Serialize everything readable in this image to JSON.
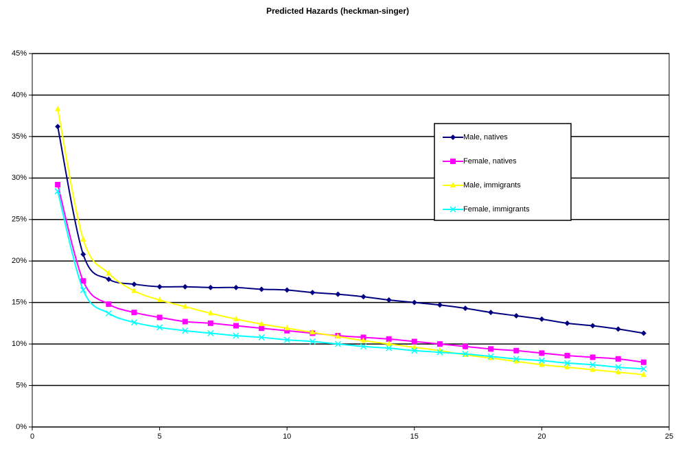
{
  "chart_data": {
    "type": "line",
    "title": "Predicted Hazards (heckman-singer)",
    "x": [
      1,
      2,
      3,
      4,
      5,
      6,
      7,
      8,
      9,
      10,
      11,
      12,
      13,
      14,
      15,
      16,
      17,
      18,
      19,
      20,
      21,
      22,
      23,
      24
    ],
    "xlim": [
      0,
      25
    ],
    "xticks": [
      0,
      5,
      10,
      15,
      20,
      25
    ],
    "ylim": [
      0,
      45
    ],
    "yticks": [
      {
        "value": 0,
        "label": "0%"
      },
      {
        "value": 5,
        "label": "5%"
      },
      {
        "value": 10,
        "label": "10%"
      },
      {
        "value": 15,
        "label": "15%"
      },
      {
        "value": 20,
        "label": "20%"
      },
      {
        "value": 25,
        "label": "25%"
      },
      {
        "value": 30,
        "label": "30%"
      },
      {
        "value": 35,
        "label": "35%"
      },
      {
        "value": 40,
        "label": "40%"
      },
      {
        "value": 45,
        "label": "45%"
      }
    ],
    "grid": true,
    "legend": "right",
    "series": [
      {
        "name": "Male, natives",
        "color": "#000080",
        "marker": "diamond",
        "values": [
          36.2,
          20.8,
          17.8,
          17.2,
          16.9,
          16.9,
          16.8,
          16.8,
          16.6,
          16.5,
          16.2,
          16.0,
          15.7,
          15.3,
          15.0,
          14.7,
          14.3,
          13.8,
          13.4,
          13.0,
          12.5,
          12.2,
          11.8,
          11.3
        ]
      },
      {
        "name": "Female, natives",
        "color": "#ff00ff",
        "marker": "square",
        "values": [
          29.2,
          17.6,
          14.8,
          13.8,
          13.2,
          12.7,
          12.5,
          12.2,
          11.9,
          11.6,
          11.3,
          11.0,
          10.8,
          10.6,
          10.3,
          10.0,
          9.7,
          9.4,
          9.2,
          8.9,
          8.6,
          8.4,
          8.2,
          7.8
        ]
      },
      {
        "name": "Male, immigrants",
        "color": "#ffff00",
        "marker": "triangle",
        "values": [
          38.3,
          22.6,
          18.5,
          16.4,
          15.3,
          14.5,
          13.7,
          13.0,
          12.4,
          11.9,
          11.4,
          10.9,
          10.4,
          10.0,
          9.6,
          9.2,
          8.7,
          8.3,
          7.9,
          7.5,
          7.2,
          6.9,
          6.6,
          6.3
        ]
      },
      {
        "name": "Female, immigrants",
        "color": "#00ffff",
        "marker": "x",
        "values": [
          28.4,
          16.5,
          13.7,
          12.6,
          12.0,
          11.6,
          11.3,
          11.0,
          10.8,
          10.5,
          10.3,
          10.0,
          9.7,
          9.5,
          9.2,
          9.0,
          8.8,
          8.5,
          8.2,
          8.0,
          7.7,
          7.5,
          7.2,
          7.0
        ]
      }
    ]
  }
}
